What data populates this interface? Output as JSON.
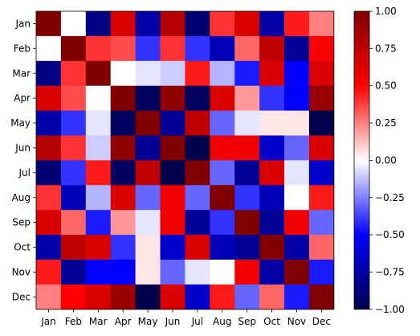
{
  "chart_data": {
    "type": "heatmap",
    "title": "",
    "xlabel": "",
    "ylabel": "",
    "x_categories": [
      "Jan",
      "Feb",
      "Mar",
      "Apr",
      "May",
      "Jun",
      "Jul",
      "Aug",
      "Sep",
      "Oct",
      "Nov",
      "Dec"
    ],
    "y_categories": [
      "Jan",
      "Feb",
      "Mar",
      "Apr",
      "May",
      "Jun",
      "Jul",
      "Aug",
      "Sep",
      "Oct",
      "Nov",
      "Dec"
    ],
    "values": [
      [
        1.0,
        0.0,
        -0.85,
        0.65,
        -0.75,
        0.8,
        -0.9,
        0.4,
        0.65,
        -0.75,
        0.45,
        0.25
      ],
      [
        0.0,
        1.0,
        0.4,
        0.35,
        -0.4,
        0.4,
        -0.4,
        -0.7,
        0.3,
        0.75,
        -0.8,
        0.5
      ],
      [
        -0.85,
        0.4,
        1.0,
        0.0,
        -0.05,
        -0.1,
        0.45,
        -0.15,
        -0.45,
        0.65,
        -0.5,
        0.65
      ],
      [
        0.65,
        0.35,
        0.0,
        1.0,
        -0.95,
        0.95,
        -0.95,
        0.65,
        0.2,
        -0.4,
        -0.5,
        0.9
      ],
      [
        -0.75,
        -0.4,
        -0.05,
        -0.95,
        1.0,
        -0.8,
        0.75,
        -0.3,
        -0.05,
        0.05,
        0.05,
        -1.0
      ],
      [
        0.8,
        0.4,
        -0.1,
        0.95,
        -0.8,
        1.0,
        -1.0,
        0.55,
        0.55,
        -0.65,
        -0.3,
        0.65
      ],
      [
        -0.9,
        -0.4,
        0.45,
        -0.95,
        0.75,
        -1.0,
        1.0,
        -0.3,
        -0.8,
        0.65,
        -0.05,
        -0.65
      ],
      [
        0.4,
        -0.7,
        -0.15,
        0.65,
        -0.3,
        0.55,
        -0.3,
        1.0,
        -0.4,
        -0.7,
        0.0,
        0.45
      ],
      [
        0.65,
        0.3,
        -0.45,
        0.2,
        -0.05,
        0.55,
        -0.8,
        -0.4,
        1.0,
        -0.8,
        0.55,
        -0.3
      ],
      [
        -0.75,
        0.75,
        0.65,
        -0.4,
        0.05,
        -0.65,
        0.65,
        -0.7,
        -0.8,
        1.0,
        -0.75,
        0.3
      ],
      [
        0.45,
        -0.8,
        -0.5,
        -0.5,
        0.05,
        -0.3,
        -0.05,
        0.0,
        0.55,
        -0.75,
        1.0,
        -0.45
      ],
      [
        0.25,
        0.5,
        0.65,
        0.9,
        -1.0,
        0.65,
        -0.65,
        0.45,
        -0.3,
        0.3,
        -0.45,
        1.0
      ]
    ],
    "colormap": "seismic",
    "vmin": -1.0,
    "vmax": 1.0,
    "colorbar": {
      "ticks": [
        1.0,
        0.75,
        0.5,
        0.25,
        0.0,
        -0.25,
        -0.5,
        -0.75,
        -1.0
      ],
      "tick_labels": [
        "1.00",
        "0.75",
        "0.50",
        "0.25",
        "0.00",
        "−0.25",
        "−0.50",
        "−0.75",
        "−1.00"
      ]
    },
    "grid": false
  }
}
